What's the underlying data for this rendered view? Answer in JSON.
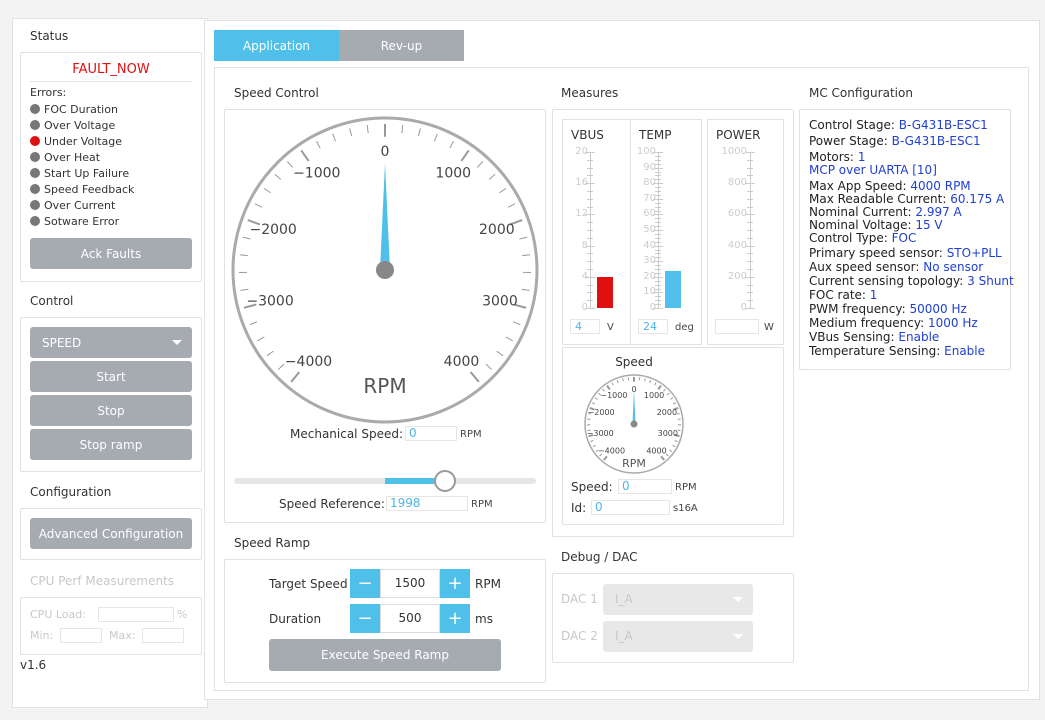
{
  "status": {
    "title": "Status",
    "fault": "FAULT_NOW",
    "errors_label": "Errors:",
    "errors": [
      {
        "label": "FOC Duration",
        "color": "#777777"
      },
      {
        "label": "Over Voltage",
        "color": "#777777"
      },
      {
        "label": "Under Voltage",
        "color": "#e01010"
      },
      {
        "label": "Over Heat",
        "color": "#777777"
      },
      {
        "label": "Start Up Failure",
        "color": "#777777"
      },
      {
        "label": "Speed Feedback",
        "color": "#777777"
      },
      {
        "label": "Over Current",
        "color": "#777777"
      },
      {
        "label": "Sotware Error",
        "color": "#777777"
      }
    ],
    "ack": "Ack Faults"
  },
  "control": {
    "title": "Control",
    "mode": "SPEED",
    "start": "Start",
    "stop": "Stop",
    "stop_ramp": "Stop ramp"
  },
  "configuration": {
    "title": "Configuration",
    "advanced": "Advanced Configuration"
  },
  "cpu": {
    "title": "CPU Perf Measurements",
    "load_label": "CPU Load:",
    "load_unit": "%",
    "min_label": "Min:",
    "max_label": "Max:"
  },
  "version": "v1.6",
  "tabs": {
    "application": "Application",
    "revup": "Rev-up"
  },
  "speed_control": {
    "title": "Speed Control",
    "gauge_unit": "RPM",
    "ticks": [
      "0",
      "1000",
      "2000",
      "3000",
      "4000",
      "−1000",
      "−2000",
      "−3000",
      "−4000"
    ],
    "mech_label": "Mechanical Speed:",
    "mech_value": "0",
    "mech_unit": "RPM",
    "ref_label": "Speed Reference:",
    "ref_value": "1998",
    "ref_unit": "RPM",
    "slider_level": 0.7
  },
  "speed_ramp": {
    "title": "Speed Ramp",
    "target_label": "Target Speed",
    "target_value": "1500",
    "target_unit": "RPM",
    "duration_label": "Duration",
    "duration_value": "500",
    "duration_unit": "ms",
    "execute": "Execute Speed Ramp",
    "minus": "−",
    "plus": "+"
  },
  "measures": {
    "title": "Measures",
    "vbus": {
      "label": "VBUS",
      "value": "4",
      "unit": "V",
      "ticks": [
        "20",
        "16",
        "12",
        "8",
        "4",
        "0"
      ],
      "max": 20,
      "level": 4,
      "color": "#e01010"
    },
    "temp": {
      "label": "TEMP",
      "value": "24",
      "unit": "deg",
      "ticks": [
        "100",
        "90",
        "80",
        "70",
        "60",
        "50",
        "40",
        "30",
        "20",
        "10",
        "0"
      ],
      "max": 100,
      "level": 24,
      "color": "#4fc0ea"
    },
    "power": {
      "label": "POWER",
      "value": "",
      "unit": "W",
      "ticks": [
        "1000",
        "800",
        "600",
        "400",
        "200",
        "0"
      ],
      "max": 1000,
      "level": 0,
      "color": "#4fc0ea"
    },
    "speed_title": "Speed",
    "small_ticks": [
      "0",
      "1000",
      "2000",
      "3000",
      "4000",
      "−1000",
      "−2000",
      "−3000",
      "−4000"
    ],
    "small_unit": "RPM",
    "speed_label": "Speed:",
    "speed_value": "0",
    "speed_unit": "RPM",
    "id_label": "Id:",
    "id_value": "0",
    "id_unit": "s16A"
  },
  "debug": {
    "title": "Debug / DAC",
    "dac1": "DAC 1",
    "dac2": "DAC 2",
    "dac1_value": "I_A",
    "dac2_value": "I_A"
  },
  "mc": {
    "title": "MC Configuration",
    "rows": [
      {
        "k": "Control Stage:",
        "v": "B-G431B-ESC1"
      },
      {
        "k": "Power Stage:",
        "v": "B-G431B-ESC1"
      },
      {
        "k": "Motors:",
        "v": "1"
      },
      {
        "k": "",
        "v": "MCP over UARTA [10]"
      },
      {
        "k": "Max App Speed:",
        "v": "4000 RPM"
      },
      {
        "k": "Max Readable Current:",
        "v": "60.175 A"
      },
      {
        "k": "Nominal Current:",
        "v": "2.997 A"
      },
      {
        "k": "Nominal Voltage:",
        "v": "15 V"
      },
      {
        "k": "Control Type:",
        "v": "FOC"
      },
      {
        "k": "Primary speed sensor:",
        "v": "STO+PLL"
      },
      {
        "k": "Aux speed sensor:",
        "v": "No sensor"
      },
      {
        "k": "Current sensing topology:",
        "v": "3 Shunt"
      },
      {
        "k": "FOC rate:",
        "v": "1"
      },
      {
        "k": "PWM frequency:",
        "v": "50000 Hz"
      },
      {
        "k": "Medium frequency:",
        "v": "1000 Hz"
      },
      {
        "k": "VBus Sensing:",
        "v": "Enable"
      },
      {
        "k": "Temperature Sensing:",
        "v": "Enable"
      }
    ]
  },
  "colors": {
    "accent": "#4fc0ea",
    "fault": "#e01010",
    "button": "#a6aab1"
  }
}
